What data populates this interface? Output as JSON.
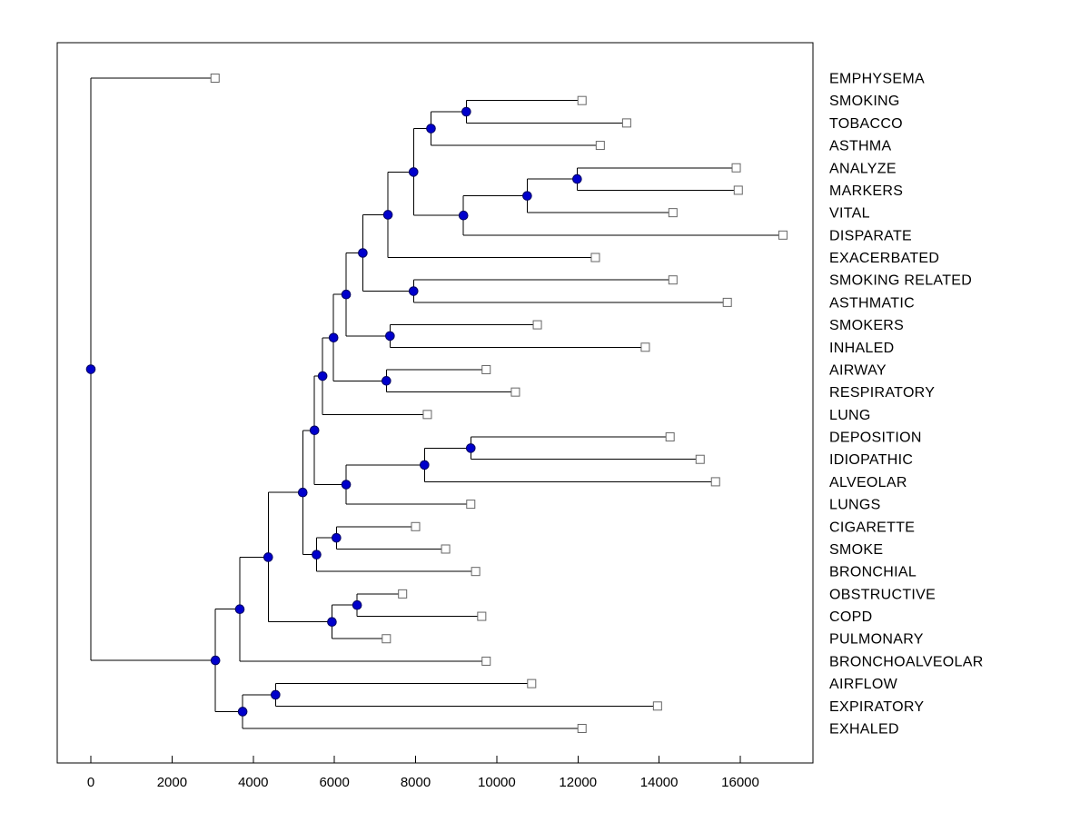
{
  "chart_data": {
    "type": "dendrogram",
    "title": "",
    "orientation": "left-to-right",
    "xlabel": "",
    "ylabel": "",
    "grid": false,
    "x_ticks": [
      0,
      2000,
      4000,
      6000,
      8000,
      10000,
      12000,
      14000,
      16000
    ],
    "x_range": [
      -830,
      17800
    ],
    "colors": {
      "line": "#000000",
      "axis": "#000000",
      "internal_node_fill": "#0000CC",
      "internal_node_edge": "#000060",
      "leaf_marker_fill": "#FFFFFF",
      "leaf_marker_edge": "#666666",
      "background": "#FFFFFF"
    },
    "leaf_labels": [
      "EMPHYSEMA",
      "SMOKING",
      "TOBACCO",
      "ASTHMA",
      "ANALYZE",
      "MARKERS",
      "VITAL",
      "DISPARATE",
      "EXACERBATED",
      "SMOKING RELATED",
      "ASTHMATIC",
      "SMOKERS",
      "INHALED",
      "AIRWAY",
      "RESPIRATORY",
      "LUNG",
      "DEPOSITION",
      "IDIOPATHIC",
      "ALVEOLAR",
      "LUNGS",
      "CIGARETTE",
      "SMOKE",
      "BRONCHIAL",
      "OBSTRUCTIVE",
      "COPD",
      "PULMONARY",
      "BRONCHOALVEOLAR",
      "AIRFLOW",
      "EXPIRATORY",
      "EXHALED"
    ],
    "tree": {
      "value": 0,
      "children": [
        {
          "label": "EMPHYSEMA",
          "value": 3060
        },
        {
          "value": 3070,
          "children": [
            {
              "value": 3670,
              "children": [
                {
                  "value": 4370,
                  "children": [
                    {
                      "value": 5220,
                      "children": [
                        {
                          "value": 5510,
                          "children": [
                            {
                              "value": 5710,
                              "children": [
                                {
                                  "value": 5980,
                                  "children": [
                                    {
                                      "value": 6290,
                                      "children": [
                                        {
                                          "value": 6700,
                                          "children": [
                                            {
                                              "value": 7320,
                                              "children": [
                                                {
                                                  "value": 7950,
                                                  "children": [
                                                    {
                                                      "value": 8380,
                                                      "children": [
                                                        {
                                                          "value": 9250,
                                                          "children": [
                                                            {
                                                              "label": "SMOKING",
                                                              "value": 12100
                                                            },
                                                            {
                                                              "label": "TOBACCO",
                                                              "value": 13200
                                                            }
                                                          ]
                                                        },
                                                        {
                                                          "label": "ASTHMA",
                                                          "value": 12550
                                                        }
                                                      ]
                                                    },
                                                    {
                                                      "value": 9180,
                                                      "children": [
                                                        {
                                                          "value": 10750,
                                                          "children": [
                                                            {
                                                              "value": 11980,
                                                              "children": [
                                                                {
                                                                  "label": "ANALYZE",
                                                                  "value": 15900
                                                                },
                                                                {
                                                                  "label": "MARKERS",
                                                                  "value": 15950
                                                                }
                                                              ]
                                                            },
                                                            {
                                                              "label": "VITAL",
                                                              "value": 14340
                                                            }
                                                          ]
                                                        },
                                                        {
                                                          "label": "DISPARATE",
                                                          "value": 17050
                                                        }
                                                      ]
                                                    }
                                                  ]
                                                },
                                                {
                                                  "label": "EXACERBATED",
                                                  "value": 12430
                                                }
                                              ]
                                            },
                                            {
                                              "value": 7950,
                                              "children": [
                                                {
                                                  "label": "SMOKING RELATED",
                                                  "value": 14340
                                                },
                                                {
                                                  "label": "ASTHMATIC",
                                                  "value": 15680
                                                }
                                              ]
                                            }
                                          ]
                                        },
                                        {
                                          "value": 7370,
                                          "children": [
                                            {
                                              "label": "SMOKERS",
                                              "value": 11000
                                            },
                                            {
                                              "label": "INHALED",
                                              "value": 13660
                                            }
                                          ]
                                        }
                                      ]
                                    },
                                    {
                                      "value": 7280,
                                      "children": [
                                        {
                                          "label": "AIRWAY",
                                          "value": 9740
                                        },
                                        {
                                          "label": "RESPIRATORY",
                                          "value": 10460
                                        }
                                      ]
                                    }
                                  ]
                                },
                                {
                                  "label": "LUNG",
                                  "value": 8290
                                }
                              ]
                            },
                            {
                              "value": 6290,
                              "children": [
                                {
                                  "value": 8220,
                                  "children": [
                                    {
                                      "value": 9360,
                                      "children": [
                                        {
                                          "label": "DEPOSITION",
                                          "value": 14270
                                        },
                                        {
                                          "label": "IDIOPATHIC",
                                          "value": 15010
                                        }
                                      ]
                                    },
                                    {
                                      "label": "ALVEOLAR",
                                      "value": 15390
                                    }
                                  ]
                                },
                                {
                                  "label": "LUNGS",
                                  "value": 9360
                                }
                              ]
                            }
                          ]
                        },
                        {
                          "value": 5560,
                          "children": [
                            {
                              "value": 6050,
                              "children": [
                                {
                                  "label": "CIGARETTE",
                                  "value": 8000
                                },
                                {
                                  "label": "SMOKE",
                                  "value": 8740
                                }
                              ]
                            },
                            {
                              "label": "BRONCHIAL",
                              "value": 9480
                            }
                          ]
                        }
                      ]
                    },
                    {
                      "value": 5940,
                      "children": [
                        {
                          "value": 6560,
                          "children": [
                            {
                              "label": "OBSTRUCTIVE",
                              "value": 7680
                            },
                            {
                              "label": "COPD",
                              "value": 9630
                            }
                          ]
                        },
                        {
                          "label": "PULMONARY",
                          "value": 7280
                        }
                      ]
                    }
                  ]
                },
                {
                  "label": "BRONCHOALVEOLAR",
                  "value": 9740
                }
              ]
            },
            {
              "value": 3740,
              "children": [
                {
                  "value": 4550,
                  "children": [
                    {
                      "label": "AIRFLOW",
                      "value": 10860
                    },
                    {
                      "label": "EXPIRATORY",
                      "value": 13960
                    }
                  ]
                },
                {
                  "label": "EXHALED",
                  "value": 12100
                }
              ]
            }
          ]
        }
      ]
    }
  }
}
